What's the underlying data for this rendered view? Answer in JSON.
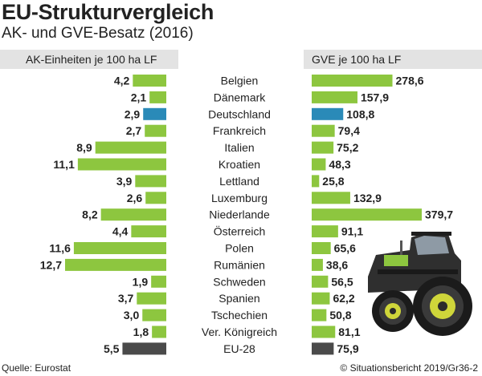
{
  "header": {
    "title": "EU-Strukturvergleich",
    "subtitle": "AK- und GVE-Besatz (2016)"
  },
  "columns": {
    "left_label": "AK-Einheiten je 100 ha LF",
    "right_label": "GVE je 100 ha LF"
  },
  "footer": {
    "source": "Quelle: Eurostat",
    "credit": "© Situationsbericht 2019/Gr36-2"
  },
  "colors": {
    "green": "#8dc63f",
    "blue": "#2a8ab8",
    "dark": "#4a4a4a",
    "header_band": "#e3e3e3"
  },
  "image": "tractor-illustration",
  "chart_data": [
    {
      "type": "bar",
      "orientation": "horizontal",
      "direction": "leftward",
      "column_label": "AK-Einheiten je 100 ha LF",
      "categories": [
        "Belgien",
        "Dänemark",
        "Deutschland",
        "Frankreich",
        "Italien",
        "Kroatien",
        "Lettland",
        "Luxemburg",
        "Niederlande",
        "Österreich",
        "Polen",
        "Rumänien",
        "Schweden",
        "Spanien",
        "Tschechien",
        "Ver. Königreich",
        "EU-28"
      ],
      "values": [
        4.2,
        2.1,
        2.9,
        2.7,
        8.9,
        11.1,
        3.9,
        2.6,
        8.2,
        4.4,
        11.6,
        12.7,
        1.9,
        3.7,
        3.0,
        1.8,
        5.5
      ],
      "labels": [
        "4,2",
        "2,1",
        "2,9",
        "2,7",
        "8,9",
        "11,1",
        "3,9",
        "2,6",
        "8,2",
        "4,4",
        "11,6",
        "12,7",
        "1,9",
        "3,7",
        "3,0",
        "1,8",
        "5,5"
      ],
      "highlight": {
        "Deutschland": "blue",
        "EU-28": "dark"
      }
    },
    {
      "type": "bar",
      "orientation": "horizontal",
      "direction": "rightward",
      "column_label": "GVE je 100 ha LF",
      "categories": [
        "Belgien",
        "Dänemark",
        "Deutschland",
        "Frankreich",
        "Italien",
        "Kroatien",
        "Lettland",
        "Luxemburg",
        "Niederlande",
        "Österreich",
        "Polen",
        "Rumänien",
        "Schweden",
        "Spanien",
        "Tschechien",
        "Ver. Königreich",
        "EU-28"
      ],
      "values": [
        278.6,
        157.9,
        108.8,
        79.4,
        75.2,
        48.3,
        25.8,
        132.9,
        379.7,
        91.1,
        65.6,
        38.6,
        56.5,
        62.2,
        50.8,
        81.1,
        75.9
      ],
      "labels": [
        "278,6",
        "157,9",
        "108,8",
        "79,4",
        "75,2",
        "48,3",
        "25,8",
        "132,9",
        "379,7",
        "91,1",
        "65,6",
        "38,6",
        "56,5",
        "62,2",
        "50,8",
        "81,1",
        "75,9"
      ],
      "highlight": {
        "Deutschland": "blue",
        "EU-28": "dark"
      }
    }
  ]
}
